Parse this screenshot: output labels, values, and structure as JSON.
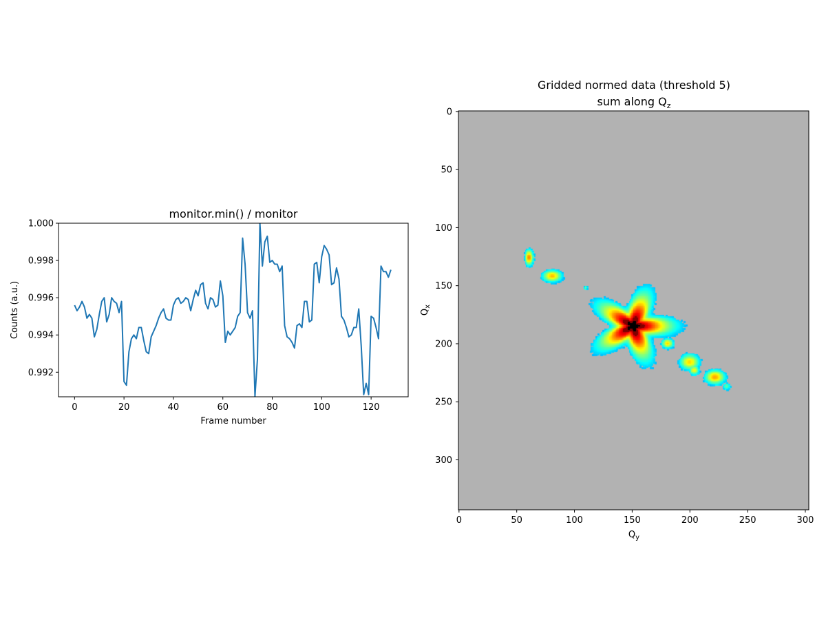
{
  "chart_data": [
    {
      "type": "line",
      "title": "monitor.min() / monitor",
      "xlabel": "Frame number",
      "ylabel": "Counts (a.u.)",
      "xlim": [
        -6.5,
        135
      ],
      "ylim": [
        0.99068,
        1.0
      ],
      "xticks": [
        0,
        20,
        40,
        60,
        80,
        100,
        120
      ],
      "yticks": [
        0.992,
        0.994,
        0.996,
        0.998,
        1.0
      ],
      "ytick_labels": [
        "0.992",
        "0.994",
        "0.996",
        "0.998",
        "1.000"
      ],
      "grid": false,
      "color": "#1f77b4",
      "series": [
        {
          "x": [
            0,
            1,
            2,
            3,
            4,
            5,
            6,
            7,
            8,
            9,
            10,
            11,
            12,
            13,
            14,
            15,
            16,
            17,
            18,
            19,
            20,
            21,
            22,
            23,
            24,
            25,
            26,
            27,
            28,
            29,
            30,
            31,
            32,
            33,
            34,
            35,
            36,
            37,
            38,
            39,
            40,
            41,
            42,
            43,
            44,
            45,
            46,
            47,
            48,
            49,
            50,
            51,
            52,
            53,
            54,
            55,
            56,
            57,
            58,
            59,
            60,
            61,
            62,
            63,
            64,
            65,
            66,
            67,
            68,
            69,
            70,
            71,
            72,
            73,
            74,
            75,
            76,
            77,
            78,
            79,
            80,
            81,
            82,
            83,
            84,
            85,
            86,
            87,
            88,
            89,
            90,
            91,
            92,
            93,
            94,
            95,
            96,
            97,
            98,
            99,
            100,
            101,
            102,
            103,
            104,
            105,
            106,
            107,
            108,
            109,
            110,
            111,
            112,
            113,
            114,
            115,
            116,
            117,
            118,
            119,
            120,
            121,
            122,
            123,
            124,
            125,
            126,
            127,
            128
          ],
          "y": [
            0.9956,
            0.9953,
            0.9955,
            0.9958,
            0.9955,
            0.9949,
            0.9951,
            0.9949,
            0.9939,
            0.9943,
            0.9951,
            0.9958,
            0.996,
            0.9947,
            0.9951,
            0.996,
            0.9958,
            0.9957,
            0.9952,
            0.9958,
            0.9915,
            0.9913,
            0.9931,
            0.9938,
            0.994,
            0.9938,
            0.9944,
            0.9944,
            0.9937,
            0.9931,
            0.993,
            0.9939,
            0.9942,
            0.9945,
            0.9949,
            0.9952,
            0.9954,
            0.9949,
            0.9948,
            0.9948,
            0.9956,
            0.9959,
            0.996,
            0.9957,
            0.9958,
            0.996,
            0.9959,
            0.9953,
            0.9959,
            0.9964,
            0.9961,
            0.9967,
            0.9968,
            0.9957,
            0.9954,
            0.996,
            0.9959,
            0.9955,
            0.9956,
            0.9969,
            0.9961,
            0.9936,
            0.9942,
            0.994,
            0.9942,
            0.9944,
            0.995,
            0.9952,
            0.9992,
            0.9978,
            0.9952,
            0.9949,
            0.9953,
            0.9907,
            0.9927,
            1.0,
            0.9977,
            0.999,
            0.9993,
            0.9979,
            0.998,
            0.9978,
            0.9978,
            0.9974,
            0.9977,
            0.9945,
            0.9939,
            0.9938,
            0.9936,
            0.9933,
            0.9945,
            0.9946,
            0.9944,
            0.9958,
            0.9958,
            0.9947,
            0.9948,
            0.9978,
            0.9979,
            0.9968,
            0.9982,
            0.9988,
            0.9986,
            0.9983,
            0.9967,
            0.9968,
            0.9976,
            0.997,
            0.995,
            0.9948,
            0.9944,
            0.9939,
            0.994,
            0.9944,
            0.9944,
            0.9954,
            0.9934,
            0.9908,
            0.9914,
            0.9908,
            0.995,
            0.9949,
            0.9944,
            0.9938,
            0.9977,
            0.9974,
            0.9974,
            0.9971,
            0.9975
          ]
        }
      ]
    },
    {
      "type": "heatmap",
      "title": "Gridded normed data (threshold 5)",
      "subtitle": "sum along Q",
      "subtitle_sub": "z",
      "xlabel": "Q",
      "xlabel_sub": "y",
      "ylabel": "Q",
      "ylabel_sub": "x",
      "xlim": [
        -0.5,
        303
      ],
      "ylim": [
        343,
        -0.5
      ],
      "xticks": [
        0,
        50,
        100,
        150,
        200,
        250,
        300
      ],
      "yticks": [
        0,
        50,
        100,
        150,
        200,
        250,
        300
      ],
      "background_color": "#b2b2b2",
      "colormap": "jet",
      "grid": false,
      "blobs": [
        {
          "qy": 61,
          "qx": 126,
          "ry": 4,
          "rx": 8,
          "peak": 0.68
        },
        {
          "qy": 81,
          "qx": 142,
          "ry": 10,
          "rx": 6,
          "peak": 0.58
        },
        {
          "qy": 110,
          "qx": 152,
          "ry": 1.5,
          "rx": 2,
          "peak": 0.35
        },
        {
          "qy": 151,
          "qx": 185,
          "ry": 28,
          "rx": 24,
          "peak": 1.0
        },
        {
          "qy": 181,
          "qx": 200,
          "ry": 6,
          "rx": 5,
          "peak": 0.55
        },
        {
          "qy": 200,
          "qx": 216,
          "ry": 10,
          "rx": 8,
          "peak": 0.55
        },
        {
          "qy": 204,
          "qx": 223,
          "ry": 5,
          "rx": 5,
          "peak": 0.5
        },
        {
          "qy": 222,
          "qx": 229,
          "ry": 10,
          "rx": 7,
          "peak": 0.62
        },
        {
          "qy": 232,
          "qx": 237,
          "ry": 4,
          "rx": 4,
          "peak": 0.3
        }
      ]
    }
  ]
}
